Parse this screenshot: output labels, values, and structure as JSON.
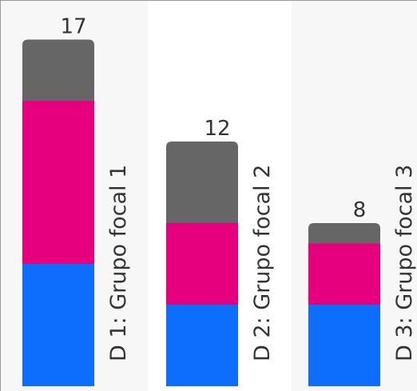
{
  "chart_data": {
    "type": "stacked-bar",
    "categories": [
      "D 1: Grupo focal 1",
      "D 2: Grupo focal 2",
      "D 3: Grupo focal 3"
    ],
    "series": [
      {
        "color": "#0d6efd",
        "values": [
          6,
          4,
          4
        ]
      },
      {
        "color": "#e6007e",
        "values": [
          8,
          4,
          3
        ]
      },
      {
        "color": "#666666",
        "values": [
          3,
          4,
          1
        ]
      }
    ],
    "totals": [
      17,
      12,
      8
    ]
  }
}
